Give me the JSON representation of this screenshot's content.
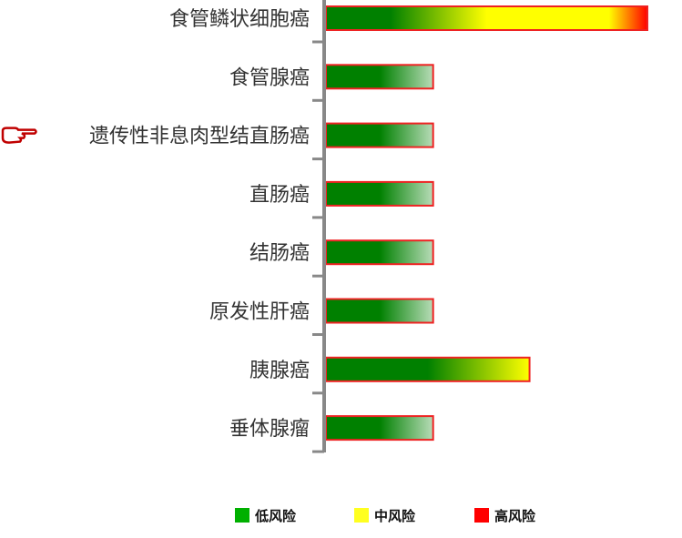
{
  "chart_data": {
    "type": "bar",
    "orientation": "horizontal",
    "categories": [
      "食管鳞状细胞癌",
      "食管腺癌",
      "遗传性非息肉型结直肠癌",
      "直肠癌",
      "结肠癌",
      "原发性肝癌",
      "胰腺癌",
      "垂体腺瘤"
    ],
    "values": [
      3,
      1,
      1,
      1,
      1,
      1,
      1.9,
      1
    ],
    "risk_levels": [
      "高风险",
      "低风险",
      "低风险",
      "低风险",
      "低风险",
      "低风险",
      "中风险",
      "低风险"
    ],
    "highlighted_category": "遗传性非息肉型结直肠癌",
    "highlight_icon": "pointing-hand-icon",
    "xlim": [
      0,
      3
    ],
    "grid": false,
    "legend_position": "bottom",
    "legend": [
      {
        "label": "低风险",
        "color": "#00b000"
      },
      {
        "label": "中风险",
        "color": "#ffff20"
      },
      {
        "label": "高风险",
        "color": "#ff0000"
      }
    ],
    "colors": {
      "low": "#008000",
      "medium": "#ffff00",
      "high": "#ff0000",
      "border": "#ee2222",
      "axis": "#888888"
    }
  }
}
